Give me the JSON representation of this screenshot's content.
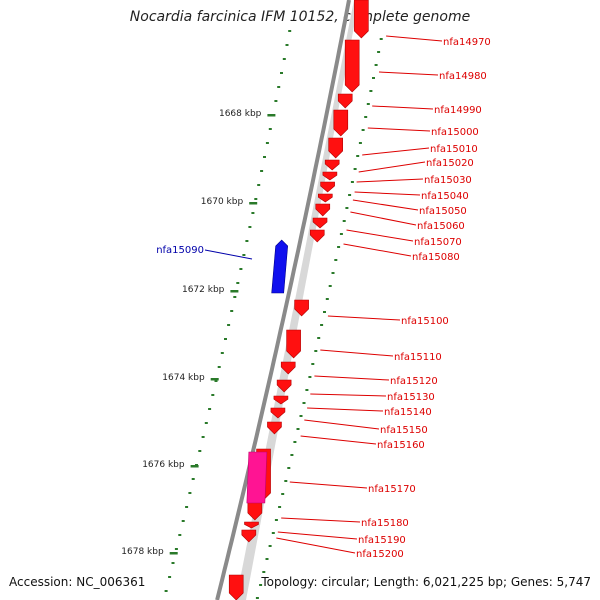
{
  "title": "Nocardia farcinica IFM 10152, complete genome",
  "accession": "Accession: NC_006361",
  "summary": "Topology: circular; Length: 6,021,225 bp; Genes: 5,747",
  "colors": {
    "backbone": "#8a8a8a",
    "forward_gene": "#ff1010",
    "highlight_gene": "#1010ee",
    "pink_gene": "#ff1493",
    "tick": "#2a7a2a",
    "gene_label": "#dd0000",
    "highlight_label": "#0000aa"
  },
  "ticks": [
    {
      "label": "1668 kbp"
    },
    {
      "label": "1670 kbp"
    },
    {
      "label": "1672 kbp"
    },
    {
      "label": "1674 kbp"
    },
    {
      "label": "1676 kbp"
    },
    {
      "label": "1678 kbp"
    }
  ],
  "genes": [
    {
      "name": "nfa14970"
    },
    {
      "name": "nfa14980"
    },
    {
      "name": "nfa14990"
    },
    {
      "name": "nfa15000"
    },
    {
      "name": "nfa15010"
    },
    {
      "name": "nfa15020"
    },
    {
      "name": "nfa15030"
    },
    {
      "name": "nfa15040"
    },
    {
      "name": "nfa15050"
    },
    {
      "name": "nfa15060"
    },
    {
      "name": "nfa15070"
    },
    {
      "name": "nfa15080"
    },
    {
      "name": "nfa15090"
    },
    {
      "name": "nfa15100"
    },
    {
      "name": "nfa15110"
    },
    {
      "name": "nfa15120"
    },
    {
      "name": "nfa15130"
    },
    {
      "name": "nfa15140"
    },
    {
      "name": "nfa15150"
    },
    {
      "name": "nfa15160"
    },
    {
      "name": "nfa15170"
    },
    {
      "name": "nfa15180"
    },
    {
      "name": "nfa15190"
    },
    {
      "name": "nfa15200"
    }
  ]
}
